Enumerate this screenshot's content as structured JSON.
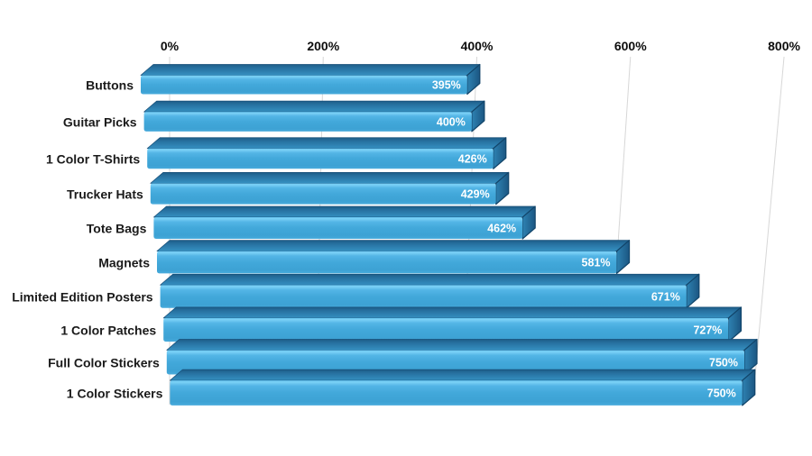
{
  "chart_data": {
    "type": "bar",
    "orientation": "horizontal",
    "style": "3d-extruded",
    "title": "",
    "categories": [
      "Buttons",
      "Guitar Picks",
      "1 Color T-Shirts",
      "Trucker Hats",
      "Tote Bags",
      "Magnets",
      "Limited Edition Posters",
      "1 Color Patches",
      "Full Color Stickers",
      "1 Color Stickers"
    ],
    "values": [
      395,
      400,
      426,
      429,
      462,
      581,
      671,
      727,
      750,
      750
    ],
    "value_labels": [
      "395%",
      "400%",
      "426%",
      "429%",
      "462%",
      "581%",
      "671%",
      "727%",
      "750%",
      "750%"
    ],
    "x_axis": {
      "position": "top",
      "tick_values": [
        0,
        200,
        400,
        600,
        800
      ],
      "tick_labels": [
        "0%",
        "200%",
        "400%",
        "600%",
        "800%"
      ]
    },
    "xlim": [
      0,
      800
    ],
    "grid": true,
    "legend": false,
    "colors": {
      "background": "#ffffff",
      "bar_front": "#42a8da",
      "bar_front_highlight": "#7dd2f7",
      "bar_top": "#2a7aa9",
      "bar_top_back": "#1d5c87",
      "bar_side": "#1f6391",
      "bar_edge": "#12456a",
      "value_label_text": "#ffffff",
      "category_label_text": "#1a1a1a",
      "axis_label_text": "#0d0d0d",
      "gridline": "#d7d7d7"
    }
  }
}
